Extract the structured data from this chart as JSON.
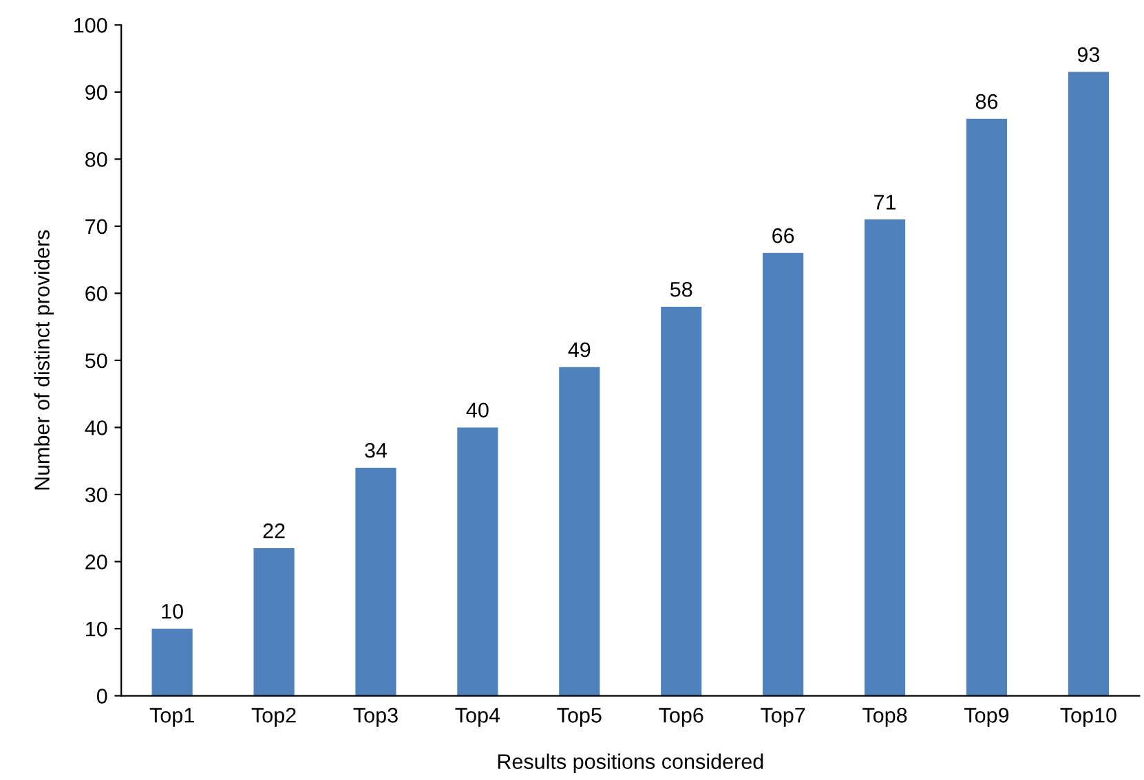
{
  "chart_data": {
    "type": "bar",
    "xlabel": "Results positions considered",
    "ylabel": "Number of distinct providers",
    "categories": [
      "Top1",
      "Top2",
      "Top3",
      "Top4",
      "Top5",
      "Top6",
      "Top7",
      "Top8",
      "Top9",
      "Top10"
    ],
    "values": [
      10,
      22,
      34,
      40,
      49,
      58,
      66,
      71,
      86,
      93
    ],
    "color": "#4f81bd",
    "ylim": [
      0,
      100
    ],
    "yticks": [
      0,
      10,
      20,
      30,
      40,
      50,
      60,
      70,
      80,
      90,
      100
    ],
    "data_labels": true,
    "grid": false,
    "legend": false
  }
}
